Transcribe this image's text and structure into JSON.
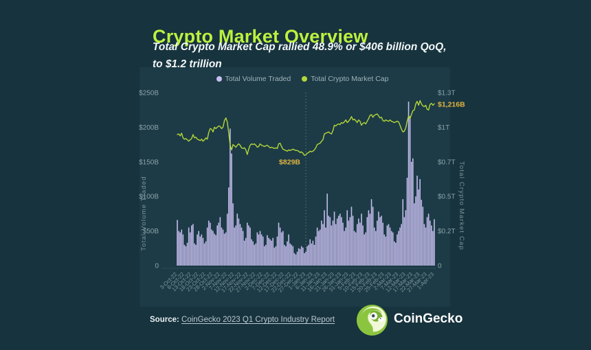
{
  "header": {
    "title": "Crypto Market Overview",
    "subtitle_line1": "Total Crypto Market Cap rallied 48.9% or $406 billion QoQ,",
    "subtitle_line2": "to $1.2 trillion"
  },
  "legend": {
    "volume_label": "Total Volume Traded",
    "market_cap_label": "Total Crypto Market Cap"
  },
  "footer": {
    "source_prefix": "Source:",
    "source_link": "CoinGecko 2023 Q1 Crypto Industry Report",
    "brand": "CoinGecko"
  },
  "colors": {
    "background": "#17333e",
    "panel": "#1c3b46",
    "title_green": "#bdf13e",
    "bar_purple": "#c7beef",
    "line_green": "#b5d639",
    "annotation_gold": "#e0b440",
    "axis_text": "#8da2a9",
    "legend_text": "#a2b2b8",
    "logo_green": "#8bc53f"
  },
  "chart_data": {
    "type": "bar+line",
    "title": "Crypto Market Overview",
    "start_date": "3-Oct-22",
    "end_date": "1-Apr-23",
    "x_tick_labels": [
      "3-Oct-22",
      "8-Oct-22",
      "13-Oct-22",
      "18-Oct-22",
      "23-Oct-22",
      "28-Oct-22",
      "2-Nov-22",
      "7-Nov-22",
      "12-Nov-22",
      "17-Nov-22",
      "22-Nov-22",
      "27-Nov-22",
      "2-Dec-22",
      "7-Dec-22",
      "12-Dec-22",
      "17-Dec-22",
      "22-Dec-22",
      "27-Dec-22",
      "1-Jan-23",
      "6-Jan-23",
      "11-Jan-23",
      "16-Jan-23",
      "21-Jan-23",
      "26-Jan-23",
      "31-Jan-23",
      "5-Feb-23",
      "10-Feb-23",
      "15-Feb-23",
      "20-Feb-23",
      "25-Feb-23",
      "2-Mar-23",
      "7-Mar-23",
      "12-Mar-23",
      "17-Mar-23",
      "22-Mar-23",
      "27-Mar-23",
      "1-Apr-23"
    ],
    "x_tick_step": 5,
    "y_left": {
      "title": "Total Volume Traded",
      "tick_labels": [
        "0",
        "$50B",
        "$100B",
        "$150B",
        "$200B",
        "$250B"
      ],
      "tick_values": [
        0,
        50,
        100,
        150,
        200,
        250
      ],
      "max": 250,
      "unit": "billion USD"
    },
    "y_right": {
      "title": "Total Crypto Market Cap",
      "tick_labels": [
        "0",
        "$0.2T",
        "$0.5T",
        "$0.7T",
        "$1T",
        "$1.3T"
      ],
      "tick_values": [
        0,
        50,
        100,
        150,
        200,
        250
      ],
      "max": 1300,
      "unit": "billion USD"
    },
    "series": [
      {
        "name": "Total Volume Traded",
        "type": "bar",
        "axis": "left",
        "color": "#c7beef",
        "values": [
          66,
          50,
          48,
          52,
          45,
          30,
          28,
          33,
          55,
          48,
          58,
          60,
          32,
          30,
          45,
          50,
          42,
          45,
          40,
          32,
          35,
          55,
          65,
          62,
          52,
          50,
          46,
          44,
          58,
          62,
          70,
          55,
          52,
          46,
          48,
          75,
          113,
          198,
          162,
          90,
          55,
          58,
          75,
          68,
          60,
          55,
          50,
          36,
          40,
          62,
          58,
          55,
          38,
          35,
          30,
          32,
          48,
          45,
          50,
          45,
          42,
          28,
          30,
          44,
          40,
          38,
          36,
          40,
          26,
          28,
          42,
          62,
          55,
          48,
          50,
          30,
          28,
          35,
          45,
          32,
          30,
          28,
          18,
          16,
          20,
          25,
          24,
          28,
          26,
          18,
          20,
          28,
          30,
          38,
          32,
          36,
          30,
          42,
          55,
          50,
          52,
          65,
          60,
          80,
          55,
          104,
          72,
          70,
          58,
          65,
          78,
          60,
          68,
          72,
          75,
          70,
          62,
          50,
          55,
          80,
          65,
          70,
          85,
          72,
          50,
          48,
          60,
          68,
          62,
          75,
          58,
          45,
          48,
          70,
          80,
          75,
          96,
          85,
          55,
          50,
          65,
          78,
          70,
          72,
          62,
          45,
          42,
          58,
          60,
          55,
          50,
          48,
          35,
          33,
          45,
          50,
          55,
          60,
          96,
          70,
          80,
          127,
          237,
          216,
          150,
          155,
          90,
          100,
          130,
          110,
          125,
          95,
          85,
          60,
          55,
          70,
          75,
          65,
          58,
          50,
          67
        ]
      },
      {
        "name": "Total Crypto Market Cap",
        "type": "line",
        "axis": "right",
        "color": "#b5d639",
        "values": [
          985,
          990,
          975,
          995,
          960,
          950,
          955,
          945,
          935,
          945,
          955,
          985,
          960,
          965,
          950,
          945,
          940,
          950,
          935,
          945,
          960,
          950,
          1000,
          1030,
          1025,
          1005,
          1040,
          1030,
          1040,
          1050,
          1045,
          1030,
          1040,
          1090,
          1110,
          1080,
          1000,
          905,
          870,
          910,
          900,
          890,
          905,
          915,
          905,
          885,
          880,
          885,
          870,
          835,
          875,
          905,
          915,
          910,
          915,
          905,
          890,
          895,
          915,
          905,
          900,
          895,
          900,
          905,
          895,
          885,
          890,
          885,
          880,
          885,
          880,
          915,
          920,
          895,
          875,
          870,
          865,
          860,
          870,
          865,
          870,
          875,
          870,
          865,
          865,
          860,
          850,
          855,
          845,
          829,
          832,
          845,
          850,
          860,
          855,
          860,
          870,
          885,
          910,
          915,
          920,
          935,
          945,
          990,
          995,
          1000,
          1005,
          995,
          990,
          1015,
          1055,
          1050,
          1060,
          1065,
          1060,
          1075,
          1070,
          1080,
          1095,
          1075,
          1085,
          1100,
          1120,
          1095,
          1100,
          1090,
          1075,
          1095,
          1085,
          1055,
          1070,
          1075,
          1065,
          1085,
          1105,
          1130,
          1135,
          1115,
          1130,
          1135,
          1140,
          1125,
          1110,
          1115,
          1090,
          1085,
          1095,
          1090,
          1085,
          1095,
          1085,
          1080,
          1075,
          1080,
          1085,
          1080,
          1055,
          1025,
          1005,
          1010,
          1035,
          1085,
          1125,
          1105,
          1135,
          1165,
          1170,
          1215,
          1235,
          1205,
          1240,
          1215,
          1200,
          1195,
          1205,
          1175,
          1170,
          1210,
          1220,
          1205,
          1216
        ]
      }
    ],
    "annotations": {
      "divider_index": 90,
      "low_label": "$829B",
      "low_value": 829,
      "end_label": "$1,216B",
      "end_value": 1216
    },
    "legend_position": "top",
    "grid": "off"
  }
}
